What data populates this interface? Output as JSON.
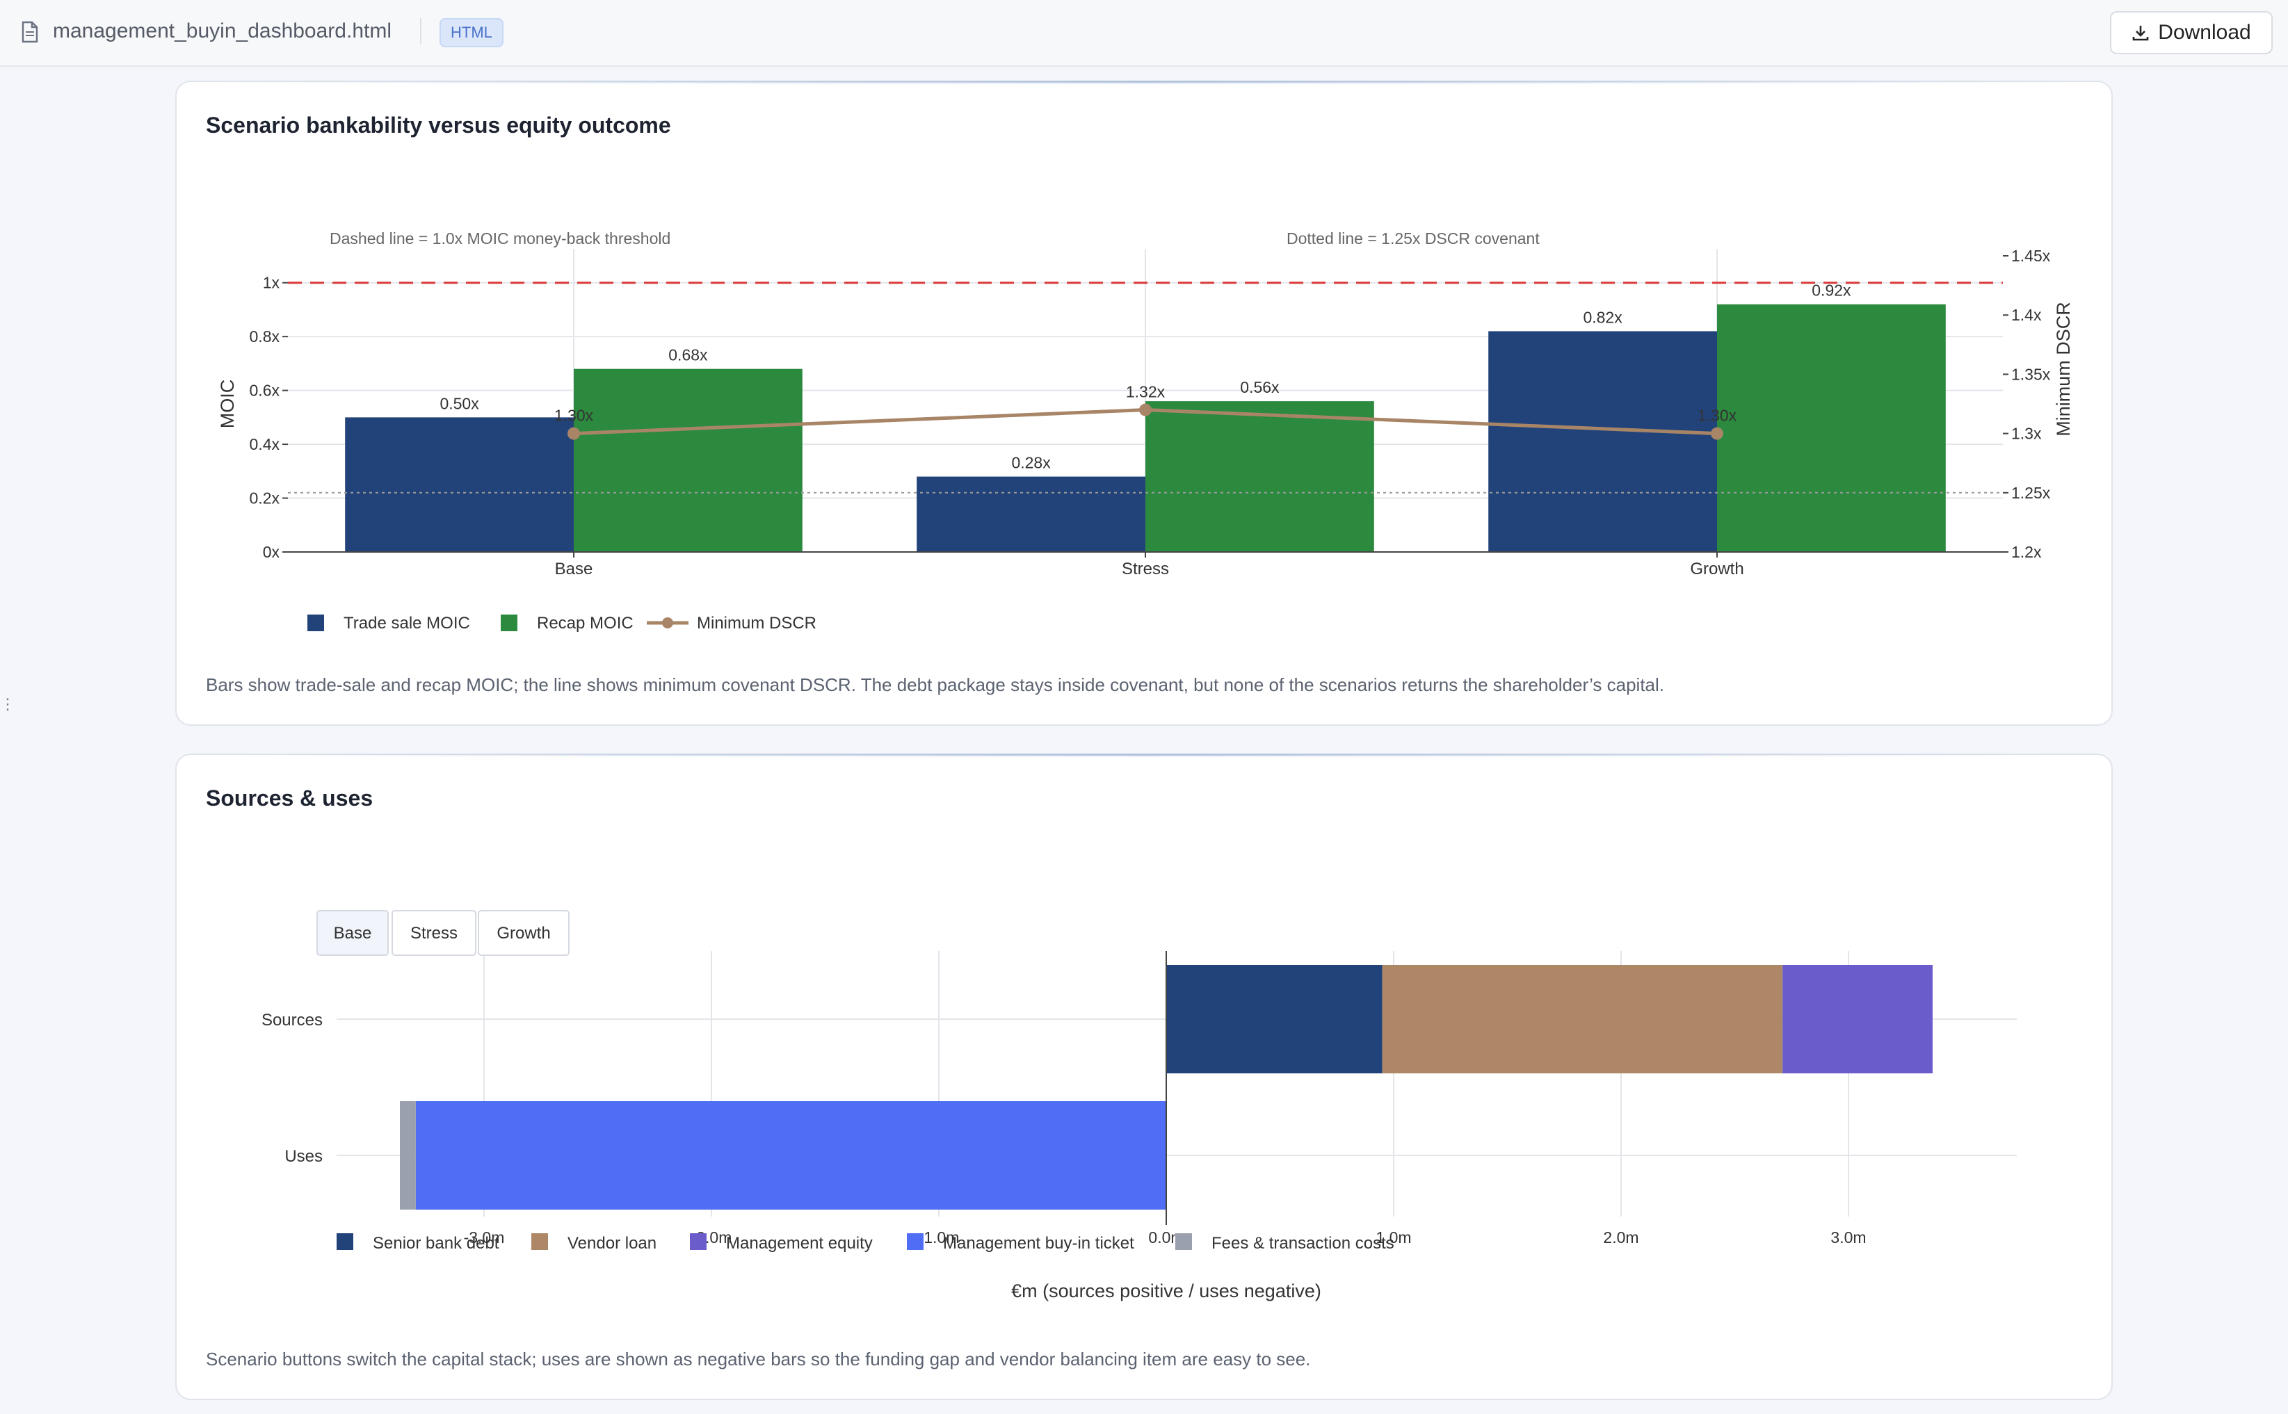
{
  "topbar": {
    "filename": "management_buyin_dashboard.html",
    "badge": "HTML",
    "download_label": "Download",
    "file_icon": "file-icon",
    "download_icon": "download-icon"
  },
  "card1": {
    "title": "Scenario bankability versus equity outcome",
    "caption": "Bars show trade-sale and recap MOIC; the line shows minimum covenant DSCR. The debt package stays inside covenant, but none of the scenarios returns the shareholder’s capital."
  },
  "card2": {
    "title": "Sources & uses",
    "caption": "Scenario buttons switch the capital stack; uses are shown as negative bars so the funding gap and vendor balancing item are easy to see.",
    "scenario_buttons": [
      "Base",
      "Stress",
      "Growth"
    ],
    "active_scenario": "Base"
  },
  "chart_data": [
    {
      "type": "bar",
      "categories": [
        "Base",
        "Stress",
        "Growth"
      ],
      "series": [
        {
          "name": "Trade sale MOIC",
          "type": "bar",
          "axis": "left",
          "color": "#22437a",
          "values": [
            0.5,
            0.28,
            0.82
          ],
          "labels": [
            "0.50x",
            "0.28x",
            "0.82x"
          ]
        },
        {
          "name": "Recap MOIC",
          "type": "bar",
          "axis": "left",
          "color": "#2b8a3e",
          "values": [
            0.68,
            0.56,
            0.92
          ],
          "labels": [
            "0.68x",
            "0.56x",
            "0.92x"
          ]
        },
        {
          "name": "Minimum DSCR",
          "type": "line",
          "axis": "right",
          "color": "#a88566",
          "values": [
            1.3,
            1.32,
            1.3
          ],
          "labels": [
            "1.30x",
            "1.32x",
            "1.30x"
          ]
        }
      ],
      "ylabel": "MOIC",
      "y2label": "Minimum DSCR",
      "ylim": [
        0,
        1.1
      ],
      "y2lim": [
        1.2,
        1.45
      ],
      "yticks": [
        "0x",
        "0.2x",
        "0.4x",
        "0.6x",
        "0.8x",
        "1x"
      ],
      "y2ticks": [
        "1.2x",
        "1.25x",
        "1.3x",
        "1.35x",
        "1.4x",
        "1.45x"
      ],
      "reference_lines": [
        {
          "axis": "left",
          "value": 1.0,
          "style": "dashed",
          "color": "#d93a3a"
        },
        {
          "axis": "right",
          "value": 1.25,
          "style": "dotted",
          "color": "#9a9a9a"
        }
      ],
      "annotations": [
        "Dashed line = 1.0x MOIC money-back threshold",
        "Dotted line = 1.25x DSCR covenant"
      ],
      "legend": "bottom-left",
      "grid": true
    },
    {
      "type": "bar",
      "orientation": "horizontal",
      "stacked": true,
      "categories": [
        "Sources",
        "Uses"
      ],
      "series": [
        {
          "name": "Senior bank debt",
          "color": "#22437a",
          "values": [
            0.95,
            0
          ]
        },
        {
          "name": "Vendor loan",
          "color": "#ad8766",
          "values": [
            1.76,
            0
          ]
        },
        {
          "name": "Management equity",
          "color": "#6b5ccc",
          "values": [
            0.66,
            0
          ]
        },
        {
          "name": "Management buy-in ticket",
          "color": "#4f6ef5",
          "values": [
            0,
            -3.3
          ]
        },
        {
          "name": "Fees & transaction costs",
          "color": "#9aa0ad",
          "values": [
            0,
            -0.07
          ]
        }
      ],
      "xlabel": "€m (sources positive / uses negative)",
      "xlim": [
        -3.4,
        3.7
      ],
      "xticks": [
        "-3.0m",
        "-2.0m",
        "-1.0m",
        "0.0m",
        "1.0m",
        "2.0m",
        "3.0m"
      ],
      "legend": "bottom-left",
      "grid": true
    }
  ]
}
